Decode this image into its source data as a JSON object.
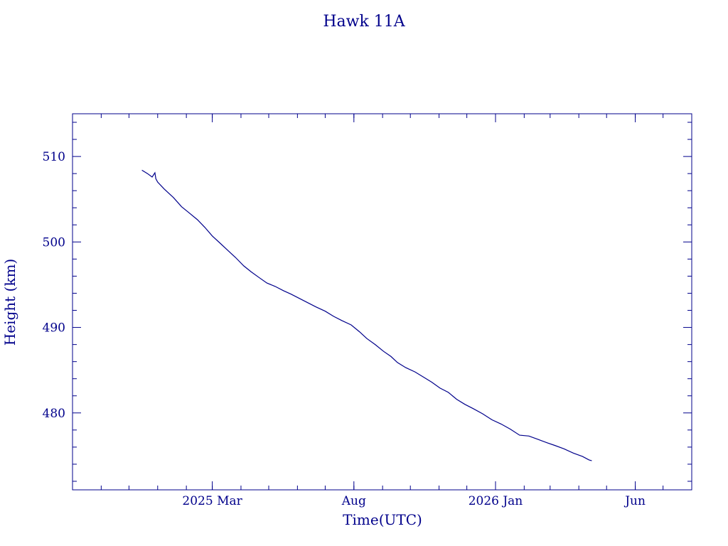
{
  "colors": {
    "ink": "#00008b",
    "background": "#ffffff"
  },
  "chart_data": {
    "type": "line",
    "title": "Hawk 11A",
    "xlabel": "Time(UTC)",
    "ylabel": "Height (km)",
    "x_type": "date",
    "xlim": [
      "2024-10-01",
      "2026-08-01"
    ],
    "ylim": [
      471,
      515
    ],
    "x_ticks": [
      {
        "date": "2025-03-01",
        "label": "2025 Mar"
      },
      {
        "date": "2025-08-01",
        "label": "Aug"
      },
      {
        "date": "2026-01-01",
        "label": "2026 Jan"
      },
      {
        "date": "2026-06-01",
        "label": "Jun"
      }
    ],
    "y_ticks": [
      480,
      490,
      500,
      510
    ],
    "grid": false,
    "legend": "none",
    "series": [
      {
        "x": [
          "2024-12-15",
          "2024-12-21",
          "2024-12-26",
          "2024-12-29",
          "2024-12-30",
          "2025-01-01",
          "2025-01-08",
          "2025-01-18",
          "2025-01-27",
          "2025-02-03",
          "2025-02-13",
          "2025-02-21",
          "2025-03-01",
          "2025-03-09",
          "2025-03-18",
          "2025-03-26",
          "2025-04-04",
          "2025-04-12",
          "2025-04-21",
          "2025-04-29",
          "2025-05-08",
          "2025-05-17",
          "2025-05-25",
          "2025-06-03",
          "2025-06-12",
          "2025-06-21",
          "2025-07-01",
          "2025-07-10",
          "2025-07-19",
          "2025-07-29",
          "2025-08-07",
          "2025-08-15",
          "2025-08-24",
          "2025-09-02",
          "2025-09-10",
          "2025-09-17",
          "2025-09-26",
          "2025-10-06",
          "2025-10-15",
          "2025-10-24",
          "2025-11-02",
          "2025-11-11",
          "2025-11-20",
          "2025-11-29",
          "2025-12-08",
          "2025-12-18",
          "2025-12-28",
          "2026-01-07",
          "2026-01-17",
          "2026-01-27",
          "2026-02-06",
          "2026-02-16",
          "2026-02-26",
          "2026-03-06",
          "2026-03-16",
          "2026-03-26",
          "2026-04-05",
          "2026-04-12",
          "2026-04-15"
        ],
        "y": [
          508.4,
          508.0,
          507.6,
          508.1,
          507.4,
          507.0,
          506.2,
          505.2,
          504.1,
          503.5,
          502.6,
          501.7,
          500.7,
          499.9,
          499.0,
          498.2,
          497.2,
          496.5,
          495.8,
          495.2,
          494.8,
          494.3,
          493.9,
          493.4,
          492.9,
          492.4,
          491.9,
          491.3,
          490.8,
          490.3,
          489.5,
          488.7,
          488.0,
          487.2,
          486.6,
          485.9,
          485.3,
          484.8,
          484.2,
          483.6,
          482.9,
          482.4,
          481.6,
          481.0,
          480.5,
          479.9,
          479.2,
          478.7,
          478.1,
          477.4,
          477.3,
          476.9,
          476.5,
          476.2,
          475.8,
          475.3,
          474.9,
          474.5,
          474.4
        ]
      }
    ]
  }
}
